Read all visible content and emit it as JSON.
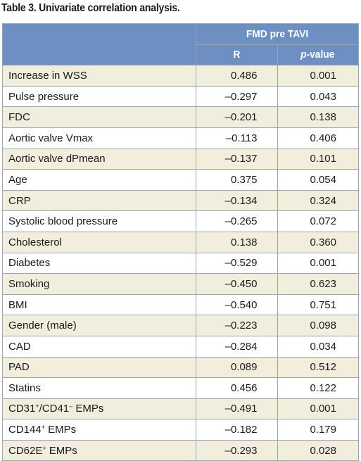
{
  "title": "Table 3. Univariate correlation analysis.",
  "header": {
    "group": "FMD pre TAVI",
    "col_r": "R",
    "col_p_italic": "p",
    "col_p_rest": "-value"
  },
  "rows": [
    {
      "label": "Increase in WSS",
      "r": "0.486",
      "p": "0.001"
    },
    {
      "label": "Pulse pressure",
      "r": "–0.297",
      "p": "0.043"
    },
    {
      "label": "FDC",
      "r": "–0.201",
      "p": "0.138"
    },
    {
      "label": "Aortic valve Vmax",
      "r": "–0.113",
      "p": "0.406"
    },
    {
      "label": "Aortic valve dPmean",
      "r": "–0.137",
      "p": "0.101"
    },
    {
      "label": "Age",
      "r": "0.375",
      "p": "0.054"
    },
    {
      "label": "CRP",
      "r": "–0.134",
      "p": "0.324"
    },
    {
      "label": "Systolic blood pressure",
      "r": "–0.265",
      "p": "0.072"
    },
    {
      "label": "Cholesterol",
      "r": "0.138",
      "p": "0.360"
    },
    {
      "label": "Diabetes",
      "r": "–0.529",
      "p": "0.001"
    },
    {
      "label": "Smoking",
      "r": "–0.450",
      "p": "0.623"
    },
    {
      "label": "BMI",
      "r": "–0.540",
      "p": "0.751"
    },
    {
      "label": "Gender (male)",
      "r": "–0.223",
      "p": "0.098"
    },
    {
      "label": "CAD",
      "r": "–0.284",
      "p": "0.034"
    },
    {
      "label": "PAD",
      "r": "0.089",
      "p": "0.512"
    },
    {
      "label": "Statins",
      "r": "0.456",
      "p": "0.122"
    },
    {
      "label_parts": [
        "CD31",
        "+",
        "/CD41",
        "–",
        " EMPs"
      ],
      "r": "–0.491",
      "p": "0.001"
    },
    {
      "label_parts": [
        "CD144",
        "+",
        " EMPs"
      ],
      "r": "–0.182",
      "p": "0.179"
    },
    {
      "label_parts": [
        "CD62E",
        "+",
        " EMPs"
      ],
      "r": "–0.293",
      "p": "0.028"
    }
  ],
  "colors": {
    "header_bg": "#6d8fc2",
    "row_alt_bg": "#f1eedd",
    "border": "#9aa5b4"
  }
}
